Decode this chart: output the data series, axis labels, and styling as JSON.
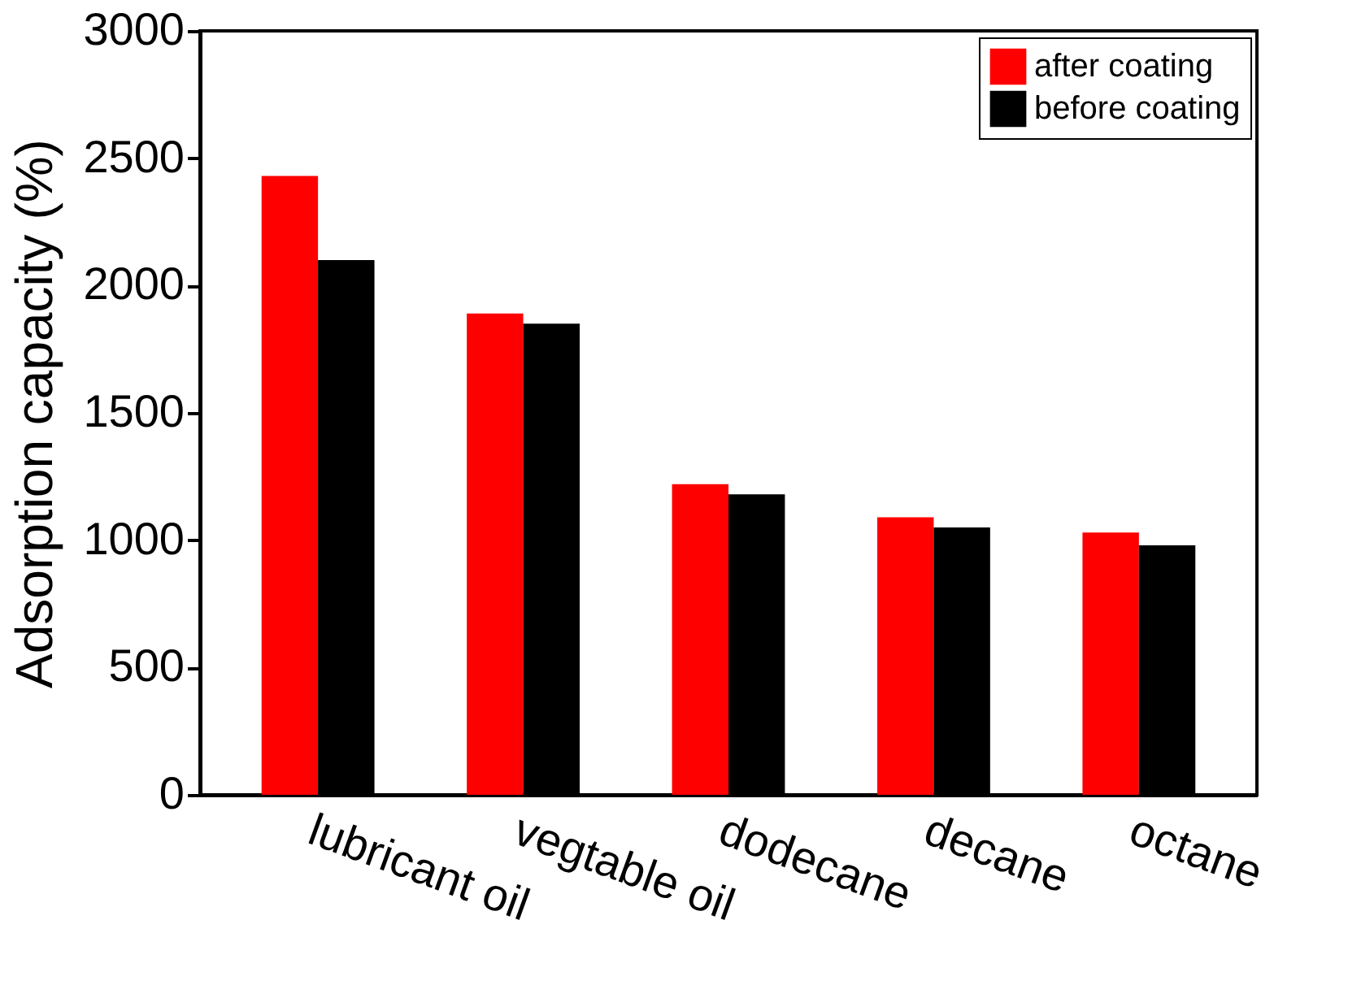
{
  "chart_data": {
    "type": "bar",
    "ylabel": "Adsorption capacity (%)",
    "categories": [
      "lubricant oil",
      "vegtable oil",
      "dodecane",
      "decane",
      "octane"
    ],
    "series": [
      {
        "name": "after coating",
        "color": "#ff0000",
        "values": [
          2430,
          1890,
          1220,
          1090,
          1030
        ]
      },
      {
        "name": "before coating",
        "color": "#000000",
        "values": [
          2100,
          1850,
          1180,
          1050,
          980
        ]
      }
    ],
    "ylim": [
      0,
      3000
    ],
    "yticks": [
      0,
      500,
      1000,
      1500,
      2000,
      2500,
      3000
    ],
    "grid": false,
    "legend": "top right"
  }
}
